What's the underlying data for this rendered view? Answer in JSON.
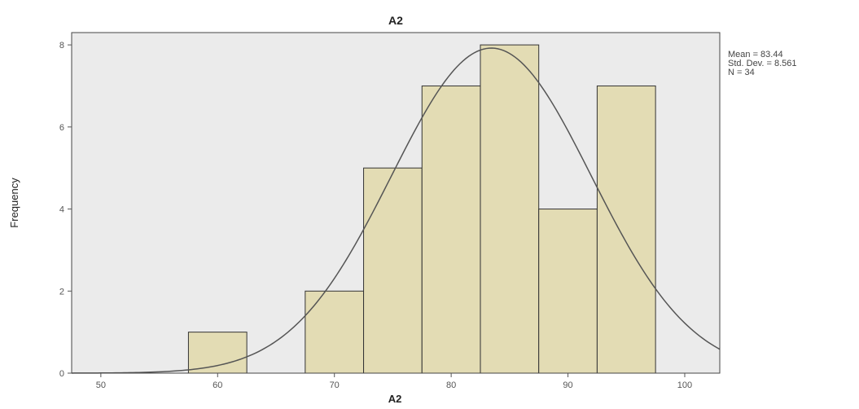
{
  "chart_data": {
    "type": "bar",
    "title": "A2",
    "xlabel": "A2",
    "ylabel": "Frequency",
    "bin_edges": [
      57.5,
      62.5,
      67.5,
      72.5,
      77.5,
      82.5,
      87.5,
      92.5,
      97.5
    ],
    "values": [
      1,
      0,
      2,
      5,
      7,
      8,
      4,
      7
    ],
    "xlim": [
      47.5,
      103
    ],
    "ylim": [
      0,
      8.3
    ],
    "x_ticks": [
      50,
      60,
      70,
      80,
      90,
      100
    ],
    "y_ticks": [
      0,
      2,
      4,
      6,
      8
    ],
    "normal_curve": {
      "mean": 83.44,
      "std_dev": 8.561,
      "n": 34
    },
    "stats": {
      "mean": "Mean = 83.44",
      "std_dev": "Std. Dev. = 8.561",
      "n": "N = 34"
    },
    "colors": {
      "plot_background": "#ebebeb",
      "bar_fill": "#e3dcb4",
      "bar_stroke": "#333333",
      "curve": "#555555"
    },
    "grid": false,
    "legend": "top-right"
  }
}
